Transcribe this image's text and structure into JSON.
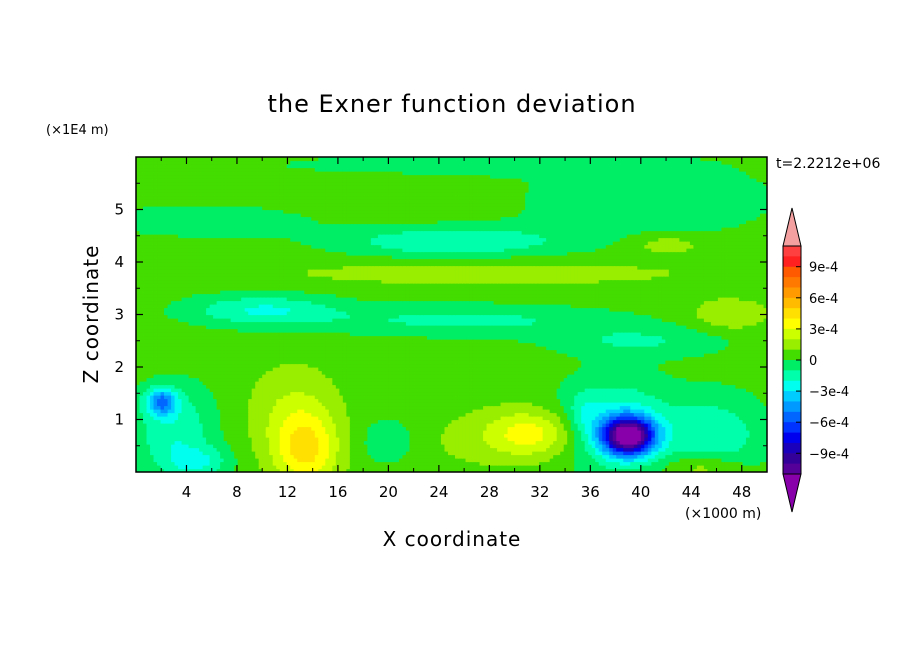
{
  "chart_data": {
    "type": "heatmap",
    "title": "the Exner function deviation",
    "xlabel": "X coordinate",
    "ylabel": "Z coordinate",
    "x_unit": "(×1000 m)",
    "y_unit": "(×1E4 m)",
    "time_label": "t=2.2212e+06",
    "xlim": [
      0,
      50
    ],
    "ylim": [
      0,
      6
    ],
    "x_ticks": [
      4,
      8,
      12,
      16,
      20,
      24,
      28,
      32,
      36,
      40,
      44,
      48
    ],
    "y_ticks": [
      1,
      2,
      3,
      4,
      5
    ],
    "colorbar": {
      "label_values": [
        0.0009,
        0.0006,
        0.0003,
        0,
        -0.0003,
        -0.0006,
        -0.0009
      ],
      "tick_labels": [
        "9e-4",
        "6e-4",
        "3e-4",
        "0",
        "−3e-4",
        "−6e-4",
        "−9e-4"
      ],
      "levels": [
        {
          "max": 0.0011,
          "min": 0.001,
          "color": "#ff4040"
        },
        {
          "max": 0.001,
          "min": 0.0009,
          "color": "#ff2020"
        },
        {
          "max": 0.0009,
          "min": 0.0008,
          "color": "#ff5a00"
        },
        {
          "max": 0.0008,
          "min": 0.0007,
          "color": "#ff7800"
        },
        {
          "max": 0.0007,
          "min": 0.0006,
          "color": "#ff9a00"
        },
        {
          "max": 0.0006,
          "min": 0.0005,
          "color": "#ffbb00"
        },
        {
          "max": 0.0005,
          "min": 0.0004,
          "color": "#ffe000"
        },
        {
          "max": 0.0004,
          "min": 0.0003,
          "color": "#ffff00"
        },
        {
          "max": 0.0003,
          "min": 0.0002,
          "color": "#ccff00"
        },
        {
          "max": 0.0002,
          "min": 0.0001,
          "color": "#99ee00"
        },
        {
          "max": 0.0001,
          "min": 0,
          "color": "#44dd00"
        },
        {
          "max": 0,
          "min": -0.0001,
          "color": "#00ee66"
        },
        {
          "max": -0.0001,
          "min": -0.0002,
          "color": "#00ffaa"
        },
        {
          "max": -0.0002,
          "min": -0.0003,
          "color": "#00ffee"
        },
        {
          "max": -0.0003,
          "min": -0.0004,
          "color": "#00ccff"
        },
        {
          "max": -0.0004,
          "min": -0.0005,
          "color": "#0099ff"
        },
        {
          "max": -0.0005,
          "min": -0.0006,
          "color": "#0066ff"
        },
        {
          "max": -0.0006,
          "min": -0.0007,
          "color": "#0033ff"
        },
        {
          "max": -0.0007,
          "min": -0.0008,
          "color": "#0000ee"
        },
        {
          "max": -0.0008,
          "min": -0.0009,
          "color": "#1a00bb"
        },
        {
          "max": -0.0009,
          "min": -0.001,
          "color": "#330099"
        },
        {
          "max": -0.001,
          "min": -0.0011,
          "color": "#550099"
        }
      ],
      "overflow_high_color": "#f4a0a0",
      "overflow_low_color": "#8800aa"
    },
    "background_value": 5e-05,
    "features": [
      {
        "x": 39,
        "y": 0.7,
        "sx": 2.0,
        "sy": 0.35,
        "amp": -0.0012
      },
      {
        "x": 38,
        "y": 0.9,
        "sx": 4.5,
        "sy": 0.9,
        "amp": -0.00028
      },
      {
        "x": 13.5,
        "y": 0.4,
        "sx": 2.5,
        "sy": 0.7,
        "amp": 0.00033
      },
      {
        "x": 12.5,
        "y": 1.1,
        "sx": 3.5,
        "sy": 0.9,
        "amp": 0.00016
      },
      {
        "x": 31.5,
        "y": 0.75,
        "sx": 3.8,
        "sy": 0.45,
        "amp": 0.00029
      },
      {
        "x": 27,
        "y": 0.6,
        "sx": 6.5,
        "sy": 0.6,
        "amp": 6e-05
      },
      {
        "x": 2,
        "y": 1.35,
        "sx": 1.2,
        "sy": 0.25,
        "amp": -0.00048
      },
      {
        "x": 3,
        "y": 0.8,
        "sx": 3.2,
        "sy": 0.9,
        "amp": -0.00024
      },
      {
        "x": 5,
        "y": 0.2,
        "sx": 2.5,
        "sy": 0.3,
        "amp": -0.0002
      },
      {
        "x": 46,
        "y": 0.7,
        "sx": 4.0,
        "sy": 0.8,
        "amp": -0.00022
      },
      {
        "x": 45,
        "y": 0.1,
        "sx": 3.0,
        "sy": 0.25,
        "amp": 0.00018
      },
      {
        "x": 20,
        "y": 0.6,
        "sx": 2.5,
        "sy": 0.5,
        "amp": -0.00013
      },
      {
        "x": 35.5,
        "y": 1.1,
        "sx": 1.2,
        "sy": 0.4,
        "amp": -0.00013
      },
      {
        "x": 2,
        "y": 2.2,
        "sx": 3.0,
        "sy": 0.3,
        "amp": 5e-05
      },
      {
        "x": 10,
        "y": 3.1,
        "sx": 6.0,
        "sy": 0.3,
        "amp": -0.00025
      },
      {
        "x": 26,
        "y": 2.9,
        "sx": 12.0,
        "sy": 0.3,
        "amp": -0.00018
      },
      {
        "x": 40,
        "y": 2.5,
        "sx": 7.0,
        "sy": 0.3,
        "amp": -0.00015
      },
      {
        "x": 47,
        "y": 3.0,
        "sx": 3.0,
        "sy": 0.3,
        "amp": 0.00015
      },
      {
        "x": 28,
        "y": 3.8,
        "sx": 18.0,
        "sy": 0.25,
        "amp": 0.0001
      },
      {
        "x": 25,
        "y": 4.4,
        "sx": 9.0,
        "sy": 0.3,
        "amp": -0.00025
      },
      {
        "x": 6,
        "y": 4.8,
        "sx": 8.0,
        "sy": 0.3,
        "amp": -0.00015
      },
      {
        "x": 42,
        "y": 4.35,
        "sx": 3.0,
        "sy": 0.2,
        "amp": 0.00013
      },
      {
        "x": 40,
        "y": 5.2,
        "sx": 10.0,
        "sy": 0.7,
        "amp": -0.00015
      },
      {
        "x": 20,
        "y": 5.3,
        "sx": 10.0,
        "sy": 0.5,
        "amp": 5e-05
      },
      {
        "x": 25,
        "y": 5.85,
        "sx": 14.0,
        "sy": 0.2,
        "amp": -0.00014
      }
    ]
  }
}
